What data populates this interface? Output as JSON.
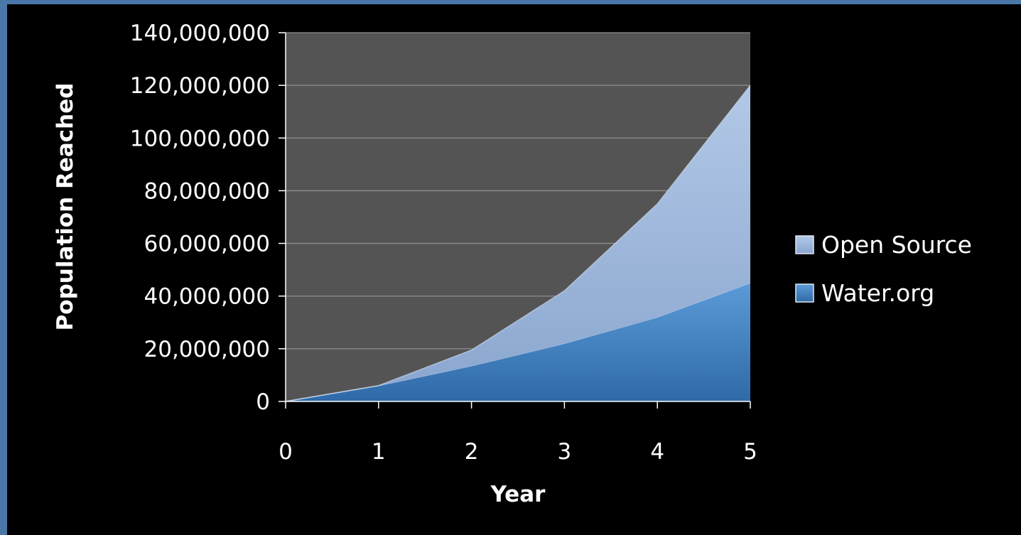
{
  "chart_data": {
    "type": "area",
    "stacked": true,
    "title": "",
    "xlabel": "Year",
    "ylabel": "Population Reached",
    "x": [
      0,
      1,
      2,
      3,
      4,
      5
    ],
    "x_tick_labels": [
      "0",
      "1",
      "2",
      "3",
      "4",
      "5"
    ],
    "ylim": [
      0,
      140000000
    ],
    "y_ticks": [
      0,
      20000000,
      40000000,
      60000000,
      80000000,
      100000000,
      120000000,
      140000000
    ],
    "y_tick_labels": [
      "0",
      "20,000,000",
      "40,000,000",
      "60,000,000",
      "80,000,000",
      "100,000,000",
      "120,000,000",
      "140,000,000"
    ],
    "grid": true,
    "legend_position": "right",
    "series": [
      {
        "name": "Water.org",
        "values": [
          0,
          6000000,
          13500000,
          22000000,
          32000000,
          45000000
        ],
        "color": "#4a86c8"
      },
      {
        "name": "Open Source",
        "values": [
          0,
          0,
          6000000,
          20000000,
          43000000,
          75000000
        ],
        "color": "#9fb9df"
      }
    ],
    "plot_background": "#545454",
    "legend_order": [
      "Open Source",
      "Water.org"
    ]
  }
}
